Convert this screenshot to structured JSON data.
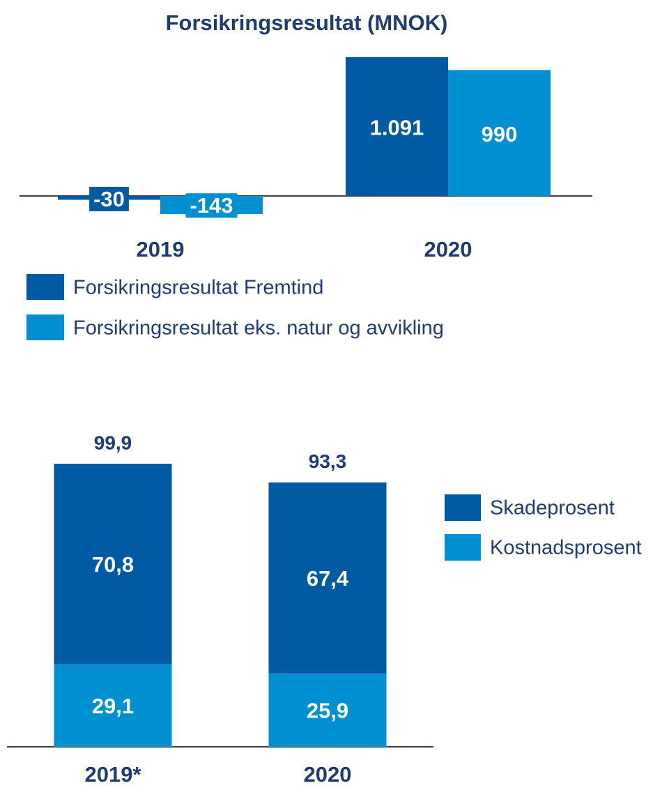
{
  "chart_data": [
    {
      "type": "bar",
      "title": "Forsikringsresultat (MNOK)",
      "categories": [
        "2019",
        "2020"
      ],
      "series": [
        {
          "name": "Forsikringsresultat Fremtind",
          "color": "#005aa3",
          "values": [
            -30,
            1091
          ],
          "value_labels": [
            "-30",
            "1.091"
          ]
        },
        {
          "name": "Forsikringsresultat eks. natur og avvikling",
          "color": "#0090d2",
          "values": [
            -143,
            990
          ]
        }
      ]
    },
    {
      "type": "stacked_bar",
      "categories": [
        "2019*",
        "2020"
      ],
      "series": [
        {
          "name": "Kostnadsprosent",
          "color": "#0090d2",
          "values": [
            29.1,
            25.9
          ],
          "value_labels": [
            "29,1",
            "25,9"
          ]
        },
        {
          "name": "Skadeprosent",
          "color": "#005aa3",
          "values": [
            70.8,
            67.4
          ],
          "value_labels": [
            "70,8",
            "67,4"
          ]
        }
      ],
      "totals": [
        99.9,
        93.3
      ],
      "total_labels": [
        "99,9",
        "93,3"
      ]
    }
  ]
}
